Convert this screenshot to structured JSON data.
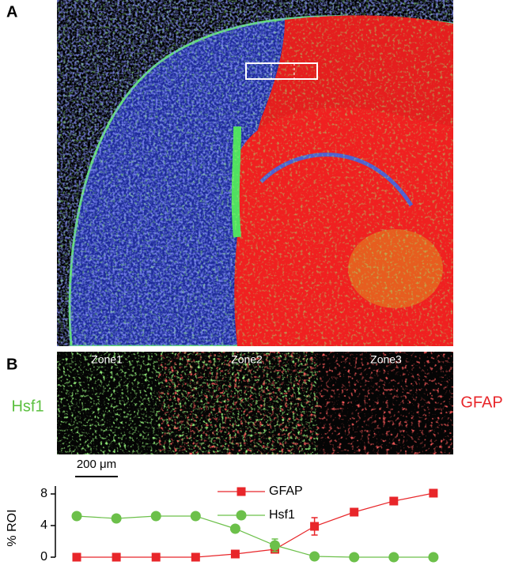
{
  "figure": {
    "panel_a": {
      "label": "A"
    },
    "panel_b": {
      "label": "B",
      "zones": [
        "Zone1",
        "Zone2",
        "Zone3"
      ],
      "left_label": "Hsf1",
      "right_label": "GFAP",
      "scale_bar": "200 μm"
    }
  },
  "chart_data": {
    "type": "line",
    "ylabel": "% ROI",
    "categories": [
      null,
      null,
      null,
      null,
      null,
      null,
      null,
      null,
      null,
      null
    ],
    "series": [
      {
        "name": "GFAP",
        "color": "#e8262a",
        "marker": "square",
        "values": [
          0,
          0,
          0,
          0,
          0.4,
          1.0,
          3.9,
          5.7,
          7.1,
          8.1
        ],
        "errors": [
          0.05,
          0.05,
          0.05,
          0.05,
          0.1,
          0.4,
          1.1,
          0.4,
          0.3,
          0.4
        ]
      },
      {
        "name": "Hsf1",
        "color": "#6cc04a",
        "marker": "circle",
        "values": [
          5.2,
          4.9,
          5.2,
          5.2,
          3.6,
          1.5,
          0.1,
          0,
          0,
          0
        ],
        "errors": [
          0.2,
          0.3,
          0.2,
          0.2,
          0.3,
          0.8,
          0.05,
          0.05,
          0.05,
          0.05
        ]
      }
    ],
    "ylim": [
      0,
      9
    ],
    "yticks": [
      0,
      4,
      8
    ]
  }
}
